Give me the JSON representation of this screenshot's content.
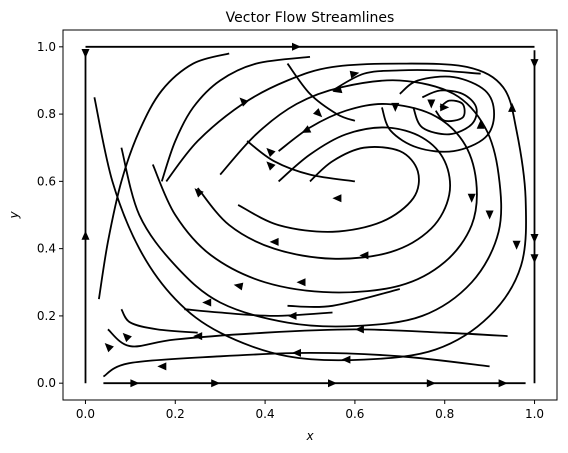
{
  "chart_data": {
    "type": "streamplot",
    "title": "Vector Flow Streamlines",
    "xlabel": "x",
    "ylabel": "y",
    "xlim": [
      -0.05,
      1.05
    ],
    "ylim": [
      -0.05,
      1.05
    ],
    "xticks": [
      0.0,
      0.2,
      0.4,
      0.6,
      0.8,
      1.0
    ],
    "xtick_labels": [
      "0.0",
      "0.2",
      "0.4",
      "0.6",
      "0.8",
      "1.0"
    ],
    "yticks": [
      0.0,
      0.2,
      0.4,
      0.6,
      0.8,
      1.0
    ],
    "ytick_labels": [
      "0.0",
      "0.2",
      "0.4",
      "0.6",
      "0.8",
      "1.0"
    ],
    "grid": false,
    "line_color": "#000000",
    "flow": "lid-driven cavity: rightward along top lid, clockwise recirculation vortex",
    "vortex_center": [
      0.81,
      0.81
    ],
    "streamlines": [
      {
        "name": "top-lid",
        "points": [
          [
            0.0,
            1.0
          ],
          [
            0.25,
            1.0
          ],
          [
            0.5,
            1.0
          ],
          [
            0.75,
            1.0
          ],
          [
            1.0,
            1.0
          ]
        ],
        "arrows": [
          [
            0.47,
            1.0,
            1,
            0
          ]
        ]
      },
      {
        "name": "right-wall-down",
        "points": [
          [
            1.0,
            0.99
          ],
          [
            1.0,
            0.8
          ],
          [
            1.0,
            0.6
          ],
          [
            1.0,
            0.4
          ],
          [
            1.0,
            0.2
          ],
          [
            1.0,
            0.0
          ]
        ],
        "arrows": [
          [
            1.0,
            0.95,
            0,
            -1
          ],
          [
            1.0,
            0.43,
            0,
            -1
          ],
          [
            1.0,
            0.37,
            0,
            -1
          ]
        ]
      },
      {
        "name": "left-wall-up",
        "points": [
          [
            0.0,
            0.0
          ],
          [
            0.0,
            0.2
          ],
          [
            0.0,
            0.4
          ],
          [
            0.0,
            0.6
          ],
          [
            0.0,
            0.8
          ],
          [
            0.0,
            0.99
          ]
        ],
        "arrows": [
          [
            0.0,
            0.44,
            0,
            1
          ],
          [
            0.0,
            0.98,
            0,
            -1
          ]
        ]
      },
      {
        "name": "bottom-wall",
        "points": [
          [
            0.04,
            0.0
          ],
          [
            0.25,
            0.0
          ],
          [
            0.5,
            0.0
          ],
          [
            0.75,
            0.0
          ],
          [
            0.98,
            0.0
          ]
        ],
        "arrows": [
          [
            0.11,
            0.0,
            1,
            0
          ],
          [
            0.29,
            0.0,
            1,
            0
          ],
          [
            0.55,
            0.0,
            1,
            0
          ],
          [
            0.77,
            0.0,
            1,
            0
          ],
          [
            0.93,
            0.0,
            1,
            0
          ]
        ]
      },
      {
        "name": "outer-loop",
        "points": [
          [
            0.02,
            0.85
          ],
          [
            0.06,
            0.6
          ],
          [
            0.12,
            0.4
          ],
          [
            0.2,
            0.25
          ],
          [
            0.3,
            0.15
          ],
          [
            0.45,
            0.08
          ],
          [
            0.62,
            0.07
          ],
          [
            0.78,
            0.1
          ],
          [
            0.9,
            0.2
          ],
          [
            0.97,
            0.35
          ],
          [
            0.98,
            0.55
          ],
          [
            0.96,
            0.75
          ],
          [
            0.93,
            0.88
          ],
          [
            0.85,
            0.94
          ],
          [
            0.7,
            0.95
          ],
          [
            0.55,
            0.94
          ],
          [
            0.45,
            0.9
          ],
          [
            0.35,
            0.83
          ],
          [
            0.25,
            0.72
          ],
          [
            0.18,
            0.6
          ]
        ],
        "arrows": [
          [
            0.58,
            0.07,
            -1,
            0
          ],
          [
            0.96,
            0.41,
            0,
            -1
          ],
          [
            0.95,
            0.82,
            0,
            1
          ]
        ]
      },
      {
        "name": "loop-2",
        "points": [
          [
            0.08,
            0.7
          ],
          [
            0.12,
            0.5
          ],
          [
            0.2,
            0.35
          ],
          [
            0.3,
            0.24
          ],
          [
            0.45,
            0.18
          ],
          [
            0.6,
            0.17
          ],
          [
            0.75,
            0.2
          ],
          [
            0.86,
            0.3
          ],
          [
            0.92,
            0.45
          ],
          [
            0.92,
            0.62
          ],
          [
            0.89,
            0.76
          ],
          [
            0.82,
            0.86
          ],
          [
            0.7,
            0.9
          ],
          [
            0.57,
            0.88
          ],
          [
            0.47,
            0.83
          ],
          [
            0.38,
            0.74
          ],
          [
            0.3,
            0.62
          ]
        ],
        "arrows": [
          [
            0.27,
            0.24,
            -1,
            0
          ],
          [
            0.9,
            0.5,
            0,
            -1
          ],
          [
            0.56,
            0.87,
            -1,
            -0.3
          ]
        ]
      },
      {
        "name": "loop-3",
        "points": [
          [
            0.15,
            0.65
          ],
          [
            0.2,
            0.5
          ],
          [
            0.28,
            0.38
          ],
          [
            0.4,
            0.3
          ],
          [
            0.55,
            0.27
          ],
          [
            0.7,
            0.29
          ],
          [
            0.8,
            0.36
          ],
          [
            0.86,
            0.47
          ],
          [
            0.87,
            0.6
          ],
          [
            0.84,
            0.72
          ],
          [
            0.77,
            0.8
          ],
          [
            0.67,
            0.83
          ],
          [
            0.58,
            0.81
          ],
          [
            0.5,
            0.76
          ],
          [
            0.43,
            0.69
          ]
        ],
        "arrows": [
          [
            0.48,
            0.3,
            -1,
            0
          ],
          [
            0.86,
            0.55,
            0,
            -1
          ],
          [
            0.49,
            0.75,
            -1,
            -0.5
          ]
        ]
      },
      {
        "name": "loop-4",
        "points": [
          [
            0.25,
            0.58
          ],
          [
            0.32,
            0.47
          ],
          [
            0.42,
            0.4
          ],
          [
            0.55,
            0.37
          ],
          [
            0.68,
            0.39
          ],
          [
            0.77,
            0.46
          ],
          [
            0.81,
            0.56
          ],
          [
            0.8,
            0.66
          ],
          [
            0.75,
            0.73
          ],
          [
            0.67,
            0.76
          ],
          [
            0.58,
            0.74
          ],
          [
            0.5,
            0.68
          ],
          [
            0.43,
            0.6
          ]
        ],
        "arrows": [
          [
            0.42,
            0.42,
            -1,
            0
          ],
          [
            0.62,
            0.38,
            -1,
            0
          ]
        ]
      },
      {
        "name": "loop-5",
        "points": [
          [
            0.34,
            0.53
          ],
          [
            0.43,
            0.47
          ],
          [
            0.55,
            0.45
          ],
          [
            0.66,
            0.48
          ],
          [
            0.73,
            0.55
          ],
          [
            0.74,
            0.63
          ],
          [
            0.7,
            0.69
          ],
          [
            0.62,
            0.7
          ],
          [
            0.55,
            0.66
          ],
          [
            0.5,
            0.6
          ]
        ],
        "arrows": [
          [
            0.56,
            0.55,
            -1,
            0
          ]
        ]
      },
      {
        "name": "vortex-outer",
        "points": [
          [
            0.66,
            0.82
          ],
          [
            0.68,
            0.75
          ],
          [
            0.74,
            0.7
          ],
          [
            0.82,
            0.69
          ],
          [
            0.89,
            0.73
          ],
          [
            0.91,
            0.8
          ],
          [
            0.89,
            0.87
          ],
          [
            0.82,
            0.91
          ],
          [
            0.74,
            0.9
          ],
          [
            0.7,
            0.86
          ]
        ],
        "arrows": [
          [
            0.88,
            0.77,
            0,
            1
          ],
          [
            0.69,
            0.82,
            0,
            -1
          ]
        ]
      },
      {
        "name": "vortex-mid",
        "points": [
          [
            0.73,
            0.82
          ],
          [
            0.75,
            0.76
          ],
          [
            0.81,
            0.74
          ],
          [
            0.86,
            0.77
          ],
          [
            0.87,
            0.82
          ],
          [
            0.84,
            0.86
          ],
          [
            0.79,
            0.87
          ],
          [
            0.75,
            0.85
          ]
        ],
        "arrows": [
          [
            0.77,
            0.83,
            0,
            -1
          ]
        ]
      },
      {
        "name": "vortex-inner",
        "points": [
          [
            0.78,
            0.81
          ],
          [
            0.8,
            0.78
          ],
          [
            0.84,
            0.79
          ],
          [
            0.84,
            0.83
          ],
          [
            0.81,
            0.84
          ],
          [
            0.79,
            0.82
          ]
        ],
        "arrows": [
          [
            0.8,
            0.82,
            1,
            0
          ]
        ]
      },
      {
        "name": "upper-fan-1",
        "points": [
          [
            0.32,
            0.98
          ],
          [
            0.24,
            0.95
          ],
          [
            0.17,
            0.87
          ],
          [
            0.12,
            0.75
          ],
          [
            0.08,
            0.6
          ],
          [
            0.05,
            0.42
          ],
          [
            0.03,
            0.25
          ]
        ],
        "arrows": [
          [
            0.09,
            0.14,
            -1,
            1
          ]
        ]
      },
      {
        "name": "upper-fan-2",
        "points": [
          [
            0.5,
            0.97
          ],
          [
            0.38,
            0.95
          ],
          [
            0.3,
            0.9
          ],
          [
            0.24,
            0.82
          ],
          [
            0.2,
            0.72
          ],
          [
            0.17,
            0.6
          ]
        ],
        "arrows": [
          [
            0.35,
            0.84,
            -1,
            1
          ],
          [
            0.25,
            0.57,
            -1,
            1
          ]
        ]
      },
      {
        "name": "bottom-inner-1",
        "points": [
          [
            0.9,
            0.05
          ],
          [
            0.7,
            0.08
          ],
          [
            0.5,
            0.09
          ],
          [
            0.3,
            0.08
          ],
          [
            0.1,
            0.06
          ],
          [
            0.04,
            0.02
          ]
        ],
        "arrows": [
          [
            0.47,
            0.09,
            -1,
            0
          ],
          [
            0.17,
            0.05,
            -1,
            0
          ]
        ]
      },
      {
        "name": "bottom-inner-2",
        "points": [
          [
            0.94,
            0.14
          ],
          [
            0.8,
            0.15
          ],
          [
            0.6,
            0.16
          ],
          [
            0.4,
            0.15
          ],
          [
            0.2,
            0.13
          ],
          [
            0.1,
            0.11
          ],
          [
            0.05,
            0.16
          ]
        ],
        "arrows": [
          [
            0.61,
            0.16,
            -1,
            0
          ],
          [
            0.25,
            0.14,
            -1,
            0
          ]
        ]
      },
      {
        "name": "mid-left-1",
        "points": [
          [
            0.08,
            0.22
          ],
          [
            0.1,
            0.18
          ],
          [
            0.16,
            0.16
          ],
          [
            0.25,
            0.15
          ]
        ],
        "arrows": [
          [
            0.05,
            0.11,
            -1,
            1
          ]
        ]
      },
      {
        "name": "mid-band-1",
        "points": [
          [
            0.55,
            0.21
          ],
          [
            0.42,
            0.2
          ],
          [
            0.3,
            0.21
          ],
          [
            0.22,
            0.22
          ]
        ],
        "arrows": [
          [
            0.46,
            0.2,
            -1,
            0
          ]
        ]
      },
      {
        "name": "mid-band-2",
        "points": [
          [
            0.7,
            0.28
          ],
          [
            0.55,
            0.23
          ],
          [
            0.45,
            0.23
          ]
        ],
        "arrows": [
          [
            0.34,
            0.29,
            -1,
            0.2
          ]
        ]
      },
      {
        "name": "mid-band-3",
        "points": [
          [
            0.6,
            0.6
          ],
          [
            0.5,
            0.62
          ],
          [
            0.42,
            0.66
          ],
          [
            0.36,
            0.72
          ]
        ],
        "arrows": [
          [
            0.41,
            0.65,
            -1,
            1
          ],
          [
            0.41,
            0.69,
            -1,
            1
          ]
        ]
      },
      {
        "name": "top-band",
        "points": [
          [
            0.55,
            0.87
          ],
          [
            0.62,
            0.92
          ],
          [
            0.7,
            0.93
          ],
          [
            0.78,
            0.93
          ],
          [
            0.88,
            0.92
          ]
        ],
        "arrows": [
          [
            0.6,
            0.92,
            1,
            0.2
          ]
        ]
      },
      {
        "name": "top-band-2",
        "points": [
          [
            0.45,
            0.95
          ],
          [
            0.5,
            0.86
          ],
          [
            0.56,
            0.8
          ],
          [
            0.6,
            0.78
          ]
        ],
        "arrows": [
          [
            0.52,
            0.8,
            1,
            -1
          ]
        ]
      }
    ]
  }
}
